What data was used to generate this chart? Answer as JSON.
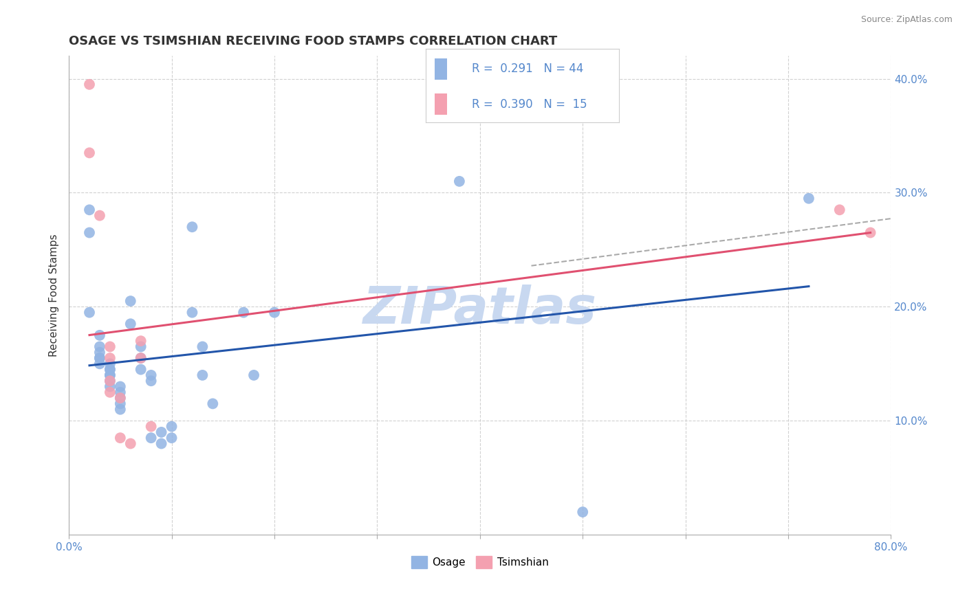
{
  "title": "OSAGE VS TSIMSHIAN RECEIVING FOOD STAMPS CORRELATION CHART",
  "source_text": "Source: ZipAtlas.com",
  "ylabel": "Receiving Food Stamps",
  "xlim": [
    0.0,
    0.8
  ],
  "ylim": [
    0.0,
    0.42
  ],
  "ytick_vals": [
    0.1,
    0.2,
    0.3,
    0.4
  ],
  "ytick_labels": [
    "10.0%",
    "20.0%",
    "30.0%",
    "40.0%"
  ],
  "xtick_vals": [
    0.0,
    0.1,
    0.2,
    0.3,
    0.4,
    0.5,
    0.6,
    0.7,
    0.8
  ],
  "legend_bottom_labels": [
    "Osage",
    "Tsimshian"
  ],
  "R_osage": 0.291,
  "N_osage": 44,
  "R_tsimshian": 0.39,
  "N_tsimshian": 15,
  "osage_color": "#92b4e3",
  "tsimshian_color": "#f4a0b0",
  "osage_line_color": "#2255aa",
  "tsimshian_line_color": "#e05070",
  "dashed_line_color": "#aaaaaa",
  "watermark_color": "#c8d8f0",
  "background_color": "#ffffff",
  "grid_color": "#cccccc",
  "tick_color": "#5588cc",
  "osage_scatter": [
    [
      0.02,
      0.285
    ],
    [
      0.02,
      0.265
    ],
    [
      0.02,
      0.195
    ],
    [
      0.03,
      0.175
    ],
    [
      0.03,
      0.165
    ],
    [
      0.03,
      0.16
    ],
    [
      0.03,
      0.155
    ],
    [
      0.03,
      0.155
    ],
    [
      0.03,
      0.15
    ],
    [
      0.04,
      0.15
    ],
    [
      0.04,
      0.145
    ],
    [
      0.04,
      0.145
    ],
    [
      0.04,
      0.14
    ],
    [
      0.04,
      0.14
    ],
    [
      0.04,
      0.135
    ],
    [
      0.04,
      0.13
    ],
    [
      0.05,
      0.13
    ],
    [
      0.05,
      0.125
    ],
    [
      0.05,
      0.12
    ],
    [
      0.05,
      0.115
    ],
    [
      0.05,
      0.11
    ],
    [
      0.06,
      0.205
    ],
    [
      0.06,
      0.185
    ],
    [
      0.07,
      0.165
    ],
    [
      0.07,
      0.155
    ],
    [
      0.07,
      0.145
    ],
    [
      0.08,
      0.14
    ],
    [
      0.08,
      0.135
    ],
    [
      0.08,
      0.085
    ],
    [
      0.09,
      0.09
    ],
    [
      0.09,
      0.08
    ],
    [
      0.1,
      0.095
    ],
    [
      0.1,
      0.085
    ],
    [
      0.12,
      0.27
    ],
    [
      0.12,
      0.195
    ],
    [
      0.13,
      0.165
    ],
    [
      0.13,
      0.14
    ],
    [
      0.14,
      0.115
    ],
    [
      0.17,
      0.195
    ],
    [
      0.18,
      0.14
    ],
    [
      0.2,
      0.195
    ],
    [
      0.38,
      0.31
    ],
    [
      0.5,
      0.02
    ],
    [
      0.72,
      0.295
    ]
  ],
  "tsimshian_scatter": [
    [
      0.02,
      0.395
    ],
    [
      0.02,
      0.335
    ],
    [
      0.03,
      0.28
    ],
    [
      0.04,
      0.165
    ],
    [
      0.04,
      0.155
    ],
    [
      0.04,
      0.135
    ],
    [
      0.04,
      0.125
    ],
    [
      0.05,
      0.12
    ],
    [
      0.05,
      0.085
    ],
    [
      0.06,
      0.08
    ],
    [
      0.07,
      0.17
    ],
    [
      0.07,
      0.155
    ],
    [
      0.08,
      0.095
    ],
    [
      0.75,
      0.285
    ],
    [
      0.78,
      0.265
    ]
  ]
}
